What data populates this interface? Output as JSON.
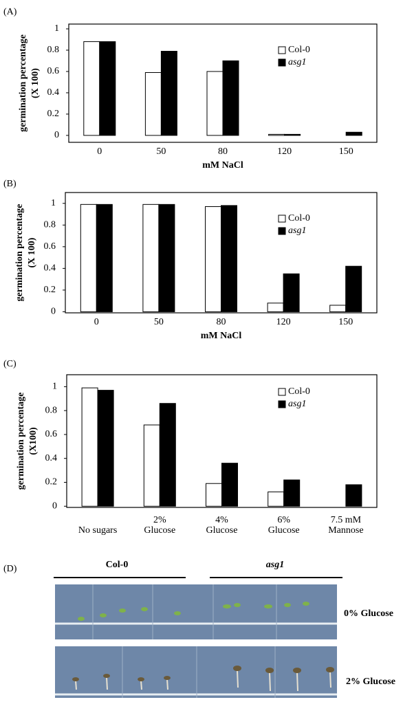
{
  "chart_data": [
    {
      "type": "bar",
      "panel": "(A)",
      "ylabel": [
        "germination percentage",
        "(X 100)"
      ],
      "xlabel": "mM NaCl",
      "categories": [
        "0",
        "50",
        "80",
        "120",
        "150"
      ],
      "series": [
        {
          "name": "Col-0",
          "color": "#ffffff",
          "values": [
            0.88,
            0.59,
            0.6,
            0.01,
            0
          ]
        },
        {
          "name": "asg1",
          "color": "#000000",
          "values": [
            0.88,
            0.79,
            0.7,
            0.01,
            0.03
          ]
        }
      ],
      "ylim": [
        -0.065,
        1.045
      ],
      "yticks": [
        0,
        0.2,
        0.4,
        0.6,
        0.8,
        1
      ]
    },
    {
      "type": "bar",
      "panel": "(B)",
      "ylabel": [
        "germination percentage",
        "(X 100)"
      ],
      "xlabel": "mM NaCl",
      "categories": [
        "0",
        "50",
        "80",
        "120",
        "150"
      ],
      "series": [
        {
          "name": "Col-0",
          "color": "#ffffff",
          "values": [
            0.99,
            0.99,
            0.97,
            0.08,
            0.06
          ]
        },
        {
          "name": "asg1",
          "color": "#000000",
          "values": [
            0.99,
            0.99,
            0.98,
            0.35,
            0.42
          ]
        }
      ],
      "ylim": [
        -0.01,
        1.1
      ],
      "yticks": [
        0,
        0.2,
        0.4,
        0.6,
        0.8,
        1
      ]
    },
    {
      "type": "bar",
      "panel": "(C)",
      "ylabel": [
        "germination percentage",
        "(X100)"
      ],
      "categories": [
        [
          "No sugars"
        ],
        [
          "2%",
          "Glucose"
        ],
        [
          "4%",
          "Glucose"
        ],
        [
          "6%",
          "Glucose"
        ],
        [
          "7.5 mM",
          "Mannose"
        ]
      ],
      "series": [
        {
          "name": "Col-0",
          "color": "#ffffff",
          "values": [
            0.99,
            0.68,
            0.19,
            0.12,
            0
          ]
        },
        {
          "name": "asg1",
          "color": "#000000",
          "values": [
            0.97,
            0.86,
            0.36,
            0.22,
            0.18
          ]
        }
      ],
      "ylim": [
        -0.01,
        1.1
      ],
      "yticks": [
        0,
        0.2,
        0.4,
        0.6,
        0.8,
        1
      ]
    }
  ],
  "panel_d": {
    "label": "(D)",
    "col0": "Col-0",
    "asg1": "asg1",
    "row1": "0% Glucose",
    "row2": "2% Glucose"
  }
}
